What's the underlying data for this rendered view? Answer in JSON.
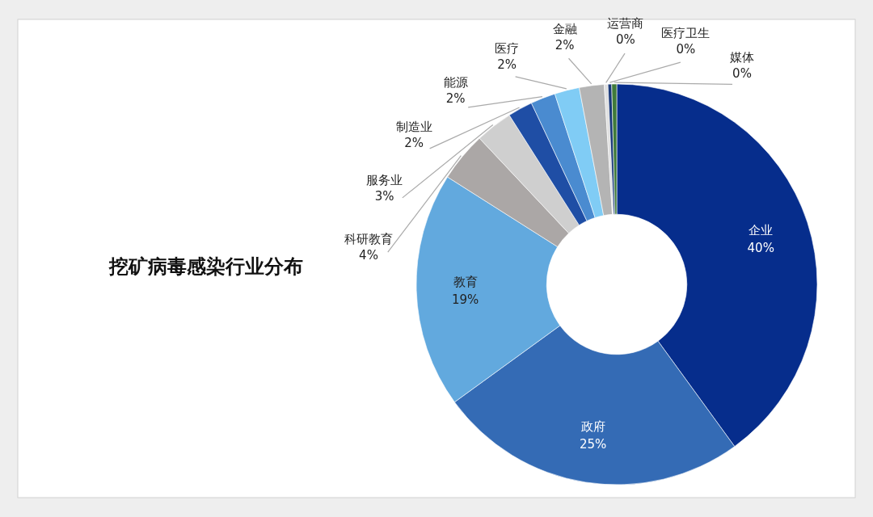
{
  "chart_data": {
    "type": "donut",
    "title": "挖矿病毒感染行业分布",
    "categories": [
      "企业",
      "政府",
      "教育",
      "科研教育",
      "服务业",
      "制造业",
      "能源",
      "医疗",
      "金融",
      "运营商",
      "医疗卫生",
      "媒体"
    ],
    "values": [
      40,
      25,
      19,
      4,
      3,
      2,
      2,
      2,
      2,
      0.3,
      0.3,
      0.4
    ],
    "value_labels": [
      "40%",
      "25%",
      "19%",
      "4%",
      "3%",
      "2%",
      "2%",
      "2%",
      "2%",
      "0%",
      "0%",
      "0%"
    ],
    "colors": [
      "#062d8c",
      "#346bb5",
      "#62a9de",
      "#aba7a6",
      "#cfcfcf",
      "#1f4ea5",
      "#4a8bd0",
      "#80ccf5",
      "#b4b4b4",
      "#e0e0e0",
      "#1b3a7a",
      "#3f7a3a"
    ],
    "legend": false
  }
}
